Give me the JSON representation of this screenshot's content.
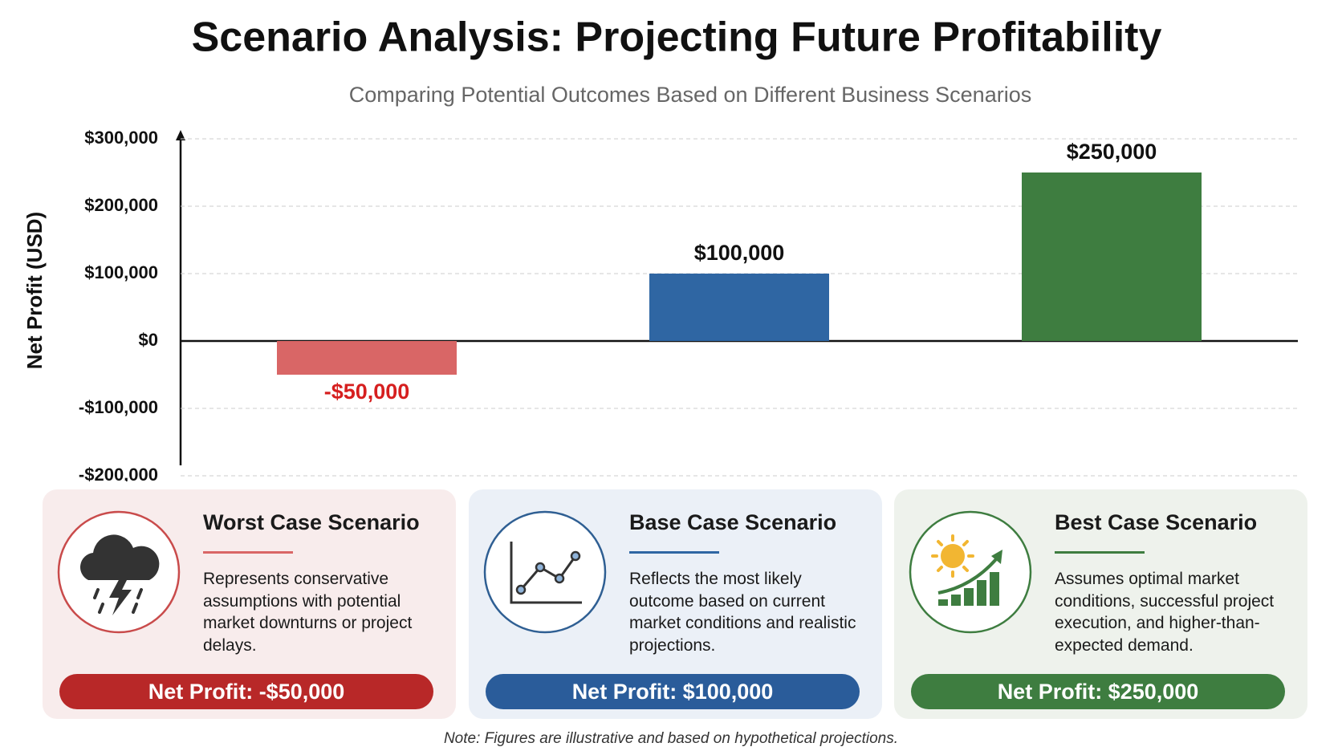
{
  "chart_data": {
    "type": "bar",
    "title": "Scenario Analysis: Projecting Future Profitability",
    "subtitle": "Comparing Potential Outcomes Based on Different Business Scenarios",
    "y_label": "Net Profit (USD)",
    "categories": [
      null,
      null,
      null
    ],
    "values": [
      -50000,
      100000,
      250000
    ],
    "value_labels": [
      "-$50,000",
      "$100,000",
      "$250,000"
    ],
    "colors": [
      "#d96666",
      "#2f66a3",
      "#3e7d40"
    ],
    "value_label_colors": [
      "#d61f1f",
      "#111111",
      "#111111"
    ],
    "ylim": [
      -200000,
      300000
    ],
    "yticks": [
      {
        "value": 300000,
        "label": "$300,000"
      },
      {
        "value": 200000,
        "label": "$200,000"
      },
      {
        "value": 100000,
        "label": "$100,000"
      },
      {
        "value": 0,
        "label": "$0"
      },
      {
        "value": -100000,
        "label": "-$100,000"
      },
      {
        "value": -200000,
        "label": "-$200,000"
      }
    ],
    "grid": true
  },
  "cards": [
    {
      "title": "Worst Case Scenario",
      "description": "Represents conservative assumptions with potential market downturns or project delays.",
      "net_profit": "Net Profit: -$50,000"
    },
    {
      "title": "Base Case Scenario",
      "description": "Reflects the most likely outcome based on current market conditions and realistic projections.",
      "net_profit": "Net Profit: $100,000"
    },
    {
      "title": "Best Case Scenario",
      "description": "Assumes optimal market conditions, successful project execution, and higher-than-expected demand.",
      "net_profit": "Net Profit: $250,000"
    }
  ],
  "note": "Note: Figures are illustrative and based on hypothetical projections."
}
